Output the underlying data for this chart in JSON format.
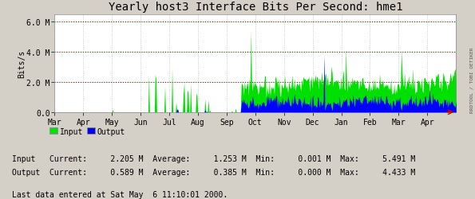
{
  "title": "Yearly host3 Interface Bits Per Second: hme1",
  "ylabel": "Bits/s",
  "background_color": "#d4d0c8",
  "plot_bg_color": "#ffffff",
  "grid_color": "#aaaaaa",
  "x_months": [
    "Mar",
    "Apr",
    "May",
    "Jun",
    "Jul",
    "Aug",
    "Sep",
    "Oct",
    "Nov",
    "Dec",
    "Jan",
    "Feb",
    "Mar",
    "Apr"
  ],
  "ytick_labels": [
    "0.0",
    "2.0 M",
    "4.0 M",
    "6.0 M"
  ],
  "ytick_vals": [
    0.0,
    2.0,
    4.0,
    6.0
  ],
  "ymax": 6.5,
  "input_color": "#00e000",
  "output_color": "#0000ff",
  "hrule_color": "#cc0000",
  "hrule_values": [
    2.0,
    4.0,
    6.0
  ],
  "legend_input": "Input",
  "legend_output": "Output",
  "stats_line1": "Input   Current:     2.205 M  Average:     1.253 M  Min:     0.001 M  Max:     5.491 M",
  "stats_line2": "Output  Current:     0.589 M  Average:     0.385 M  Min:     0.000 M  Max:     4.433 M",
  "footer_text": "Last data entered at Sat May  6 11:10:01 2000.",
  "side_text": "RRDTOOL / TOBI OETIKER",
  "arrow_color": "#cc0000",
  "title_fontsize": 10,
  "axis_fontsize": 7,
  "stats_fontsize": 7
}
